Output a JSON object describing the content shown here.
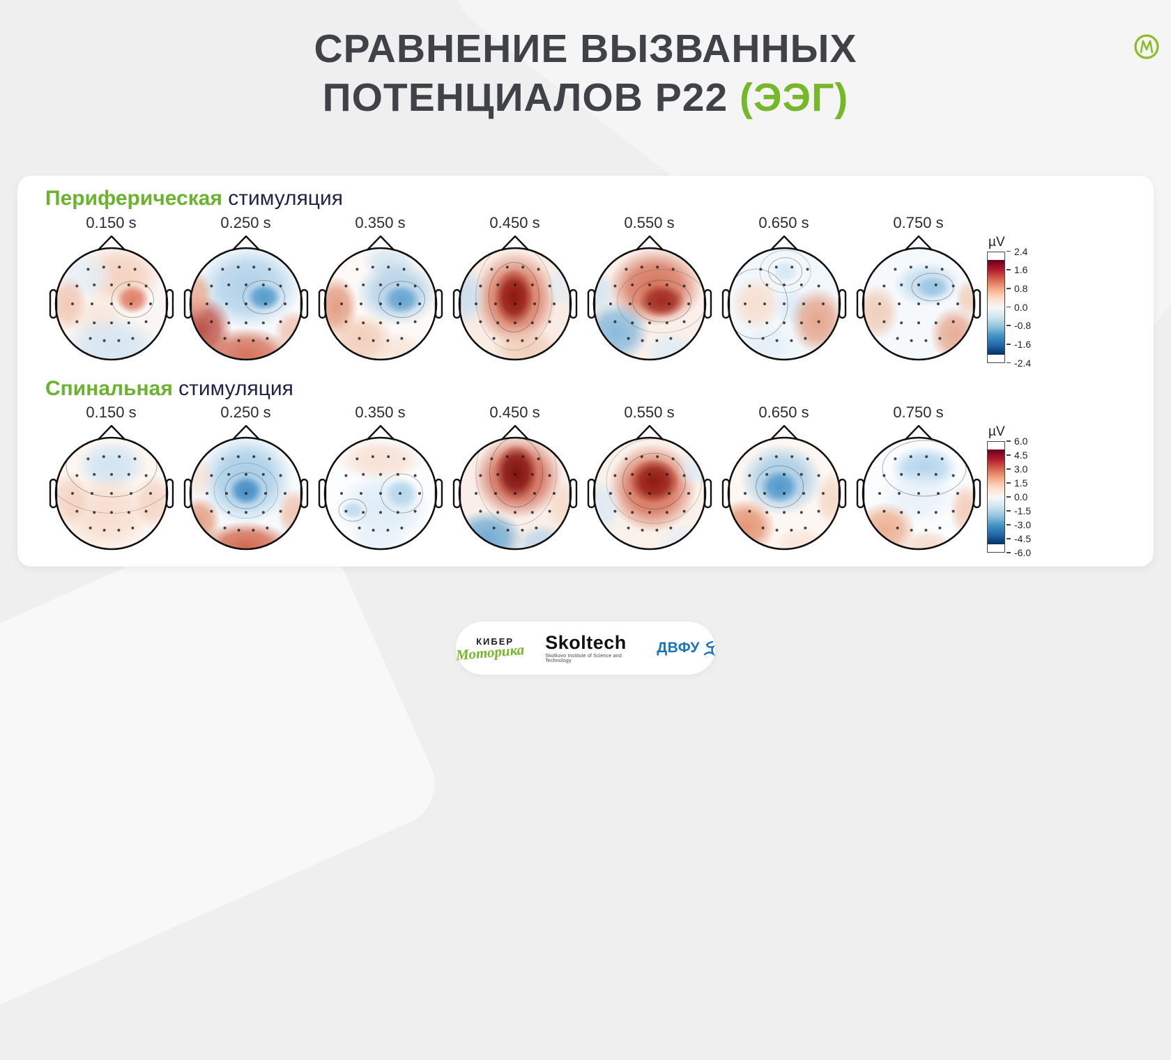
{
  "page_background": "#efefef",
  "brand_logo": {
    "letter": "М",
    "color": "#8cbd22"
  },
  "title": {
    "line1": "СРАВНЕНИЕ ВЫЗВАННЫХ",
    "line2_dark": "ПОТЕНЦИАЛОВ P22 ",
    "line2_green": "(ЭЭГ)",
    "dark_color": "#3f4246",
    "green_color": "#76b82a"
  },
  "footer": {
    "kiber_top": "КИБЕР",
    "kiber_bottom": "Моторика",
    "skoltech": "Skoltech",
    "skoltech_subtitle": "Skolkovo Institute of Science and Technology",
    "dvfu": "ДВФУ"
  },
  "chart_data": {
    "type": "heatmap",
    "title": "Сравнение вызванных потенциалов P22 (ЭЭГ)",
    "description": "Two rows of EEG scalp topographic maps (evoked potential P22) at seven latencies, for peripheral vs spinal stimulation, diverging red-blue colormap in µV.",
    "colormap_gradient_top_to_bottom": [
      "#67001f",
      "#b2182b",
      "#d6604d",
      "#f4a582",
      "#fddbc7",
      "#f7f7f7",
      "#d1e5f0",
      "#92c5de",
      "#4393c3",
      "#2166ac",
      "#053061"
    ],
    "electrodes": [
      [
        -0.42,
        -0.62
      ],
      [
        -0.14,
        -0.66
      ],
      [
        0.14,
        -0.66
      ],
      [
        0.42,
        -0.62
      ],
      [
        -0.62,
        -0.32
      ],
      [
        -0.31,
        -0.34
      ],
      [
        0,
        -0.34
      ],
      [
        0.31,
        -0.34
      ],
      [
        0.62,
        -0.32
      ],
      [
        -0.7,
        0.0
      ],
      [
        -0.35,
        0.0
      ],
      [
        0,
        0.0
      ],
      [
        0.35,
        0.0
      ],
      [
        0.7,
        0.0
      ],
      [
        -0.62,
        0.32
      ],
      [
        -0.31,
        0.34
      ],
      [
        0,
        0.34
      ],
      [
        0.31,
        0.34
      ],
      [
        0.62,
        0.32
      ],
      [
        -0.38,
        0.62
      ],
      [
        -0.13,
        0.66
      ],
      [
        0.13,
        0.66
      ],
      [
        0.38,
        0.62
      ]
    ],
    "groups": [
      {
        "title_highlight": "Периферическая",
        "title_rest": " стимуляция",
        "colorbar": {
          "unit": "µV",
          "vmax": 2.4,
          "vmin": -2.4,
          "ticks": [
            "2.4",
            "1.6",
            "0.8",
            "0.0",
            "-0.8",
            "-1.6",
            "-2.4"
          ]
        },
        "maps": [
          {
            "time": "0.150 s",
            "base": "#fbf6f3",
            "blobs": [
              {
                "x": 0.15,
                "y": -0.5,
                "rx": 0.75,
                "ry": 0.55,
                "c": "#f2c9b2",
                "a": 0.8
              },
              {
                "x": -0.45,
                "y": -0.5,
                "rx": 0.5,
                "ry": 0.45,
                "c": "#e4eef7",
                "a": 0.9
              },
              {
                "x": 0.38,
                "y": -0.08,
                "rx": 0.3,
                "ry": 0.26,
                "c": "#d96b4f",
                "a": 0.85,
                "ct": 1
              },
              {
                "x": -0.78,
                "y": 0.0,
                "rx": 0.35,
                "ry": 0.5,
                "c": "#eeb69c",
                "a": 0.7
              },
              {
                "x": -0.25,
                "y": 0.25,
                "rx": 0.5,
                "ry": 0.4,
                "c": "#f4ddcd",
                "a": 0.6
              },
              {
                "x": 0.0,
                "y": 0.8,
                "rx": 0.9,
                "ry": 0.6,
                "c": "#cfe3f2",
                "a": 0.85
              }
            ]
          },
          {
            "time": "0.250 s",
            "base": "#f7fafd",
            "blobs": [
              {
                "x": 0.05,
                "y": -0.3,
                "rx": 0.95,
                "ry": 0.75,
                "c": "#a8cce6",
                "a": 0.9
              },
              {
                "x": 0.32,
                "y": -0.12,
                "rx": 0.3,
                "ry": 0.24,
                "c": "#4a94c9",
                "a": 0.9,
                "ct": 1
              },
              {
                "x": -0.8,
                "y": 0.45,
                "rx": 0.55,
                "ry": 0.6,
                "c": "#b43527",
                "a": 0.85
              },
              {
                "x": 0.0,
                "y": 0.92,
                "rx": 0.85,
                "ry": 0.5,
                "c": "#cf5a3e",
                "a": 0.85
              },
              {
                "x": -0.9,
                "y": -0.15,
                "rx": 0.3,
                "ry": 0.45,
                "c": "#e8a183",
                "a": 0.8
              },
              {
                "x": 0.85,
                "y": 0.5,
                "rx": 0.35,
                "ry": 0.4,
                "c": "#eeb096",
                "a": 0.7
              }
            ]
          },
          {
            "time": "0.350 s",
            "base": "#fdf9f6",
            "blobs": [
              {
                "x": 0.15,
                "y": -0.75,
                "rx": 0.5,
                "ry": 0.3,
                "c": "#cfe2f1",
                "a": 0.8
              },
              {
                "x": 0.3,
                "y": -0.2,
                "rx": 0.75,
                "ry": 0.6,
                "c": "#a8cce6",
                "a": 0.9
              },
              {
                "x": 0.38,
                "y": -0.08,
                "rx": 0.33,
                "ry": 0.26,
                "c": "#5d9fd0",
                "a": 0.9,
                "ct": 1
              },
              {
                "x": -0.8,
                "y": 0.05,
                "rx": 0.4,
                "ry": 0.55,
                "c": "#dd8868",
                "a": 0.8
              },
              {
                "x": -0.35,
                "y": 0.65,
                "rx": 0.6,
                "ry": 0.5,
                "c": "#f0c3ab",
                "a": 0.8
              },
              {
                "x": 0.3,
                "y": 0.85,
                "rx": 0.5,
                "ry": 0.35,
                "c": "#f6ded0",
                "a": 0.7
              }
            ]
          },
          {
            "time": "0.450 s",
            "base": "#f9ece4",
            "blobs": [
              {
                "x": 0.0,
                "y": -0.1,
                "rx": 0.75,
                "ry": 0.85,
                "c": "#d0644a",
                "a": 0.9
              },
              {
                "x": -0.02,
                "y": -0.12,
                "rx": 0.36,
                "ry": 0.5,
                "c": "#8c130e",
                "a": 0.95,
                "ct": 1
              },
              {
                "x": -0.88,
                "y": -0.15,
                "rx": 0.35,
                "ry": 0.55,
                "c": "#c5dcef",
                "a": 0.85
              },
              {
                "x": 0.85,
                "y": -0.3,
                "rx": 0.3,
                "ry": 0.4,
                "c": "#dcebf6",
                "a": 0.7
              },
              {
                "x": 0.2,
                "y": 0.8,
                "rx": 0.6,
                "ry": 0.4,
                "c": "#f0c3ab",
                "a": 0.7
              }
            ]
          },
          {
            "time": "0.550 s",
            "base": "#faf0e9",
            "blobs": [
              {
                "x": 0.1,
                "y": -0.3,
                "rx": 0.85,
                "ry": 0.7,
                "c": "#d0644a",
                "a": 0.9
              },
              {
                "x": 0.22,
                "y": -0.05,
                "rx": 0.42,
                "ry": 0.3,
                "c": "#9c231b",
                "a": 0.92,
                "ct": 1
              },
              {
                "x": -0.6,
                "y": 0.5,
                "rx": 0.6,
                "ry": 0.55,
                "c": "#7db4da",
                "a": 0.9
              },
              {
                "x": -0.9,
                "y": -0.2,
                "rx": 0.3,
                "ry": 0.4,
                "c": "#cfe3f2",
                "a": 0.8
              },
              {
                "x": 0.4,
                "y": 0.85,
                "rx": 0.5,
                "ry": 0.35,
                "c": "#dcebf6",
                "a": 0.8
              }
            ]
          },
          {
            "time": "0.650 s",
            "base": "#f2f7fc",
            "blobs": [
              {
                "x": 0.02,
                "y": -0.58,
                "rx": 0.24,
                "ry": 0.2,
                "c": "#d4e6f4",
                "a": 0.95,
                "ct": 1
              },
              {
                "x": -0.5,
                "y": 0.0,
                "rx": 0.45,
                "ry": 0.5,
                "c": "#f6ddca",
                "a": 0.9,
                "ct": 1
              },
              {
                "x": 0.15,
                "y": 0.05,
                "rx": 0.35,
                "ry": 0.35,
                "c": "#d9e9f6",
                "a": 0.8
              },
              {
                "x": 0.6,
                "y": 0.3,
                "rx": 0.5,
                "ry": 0.6,
                "c": "#e29272",
                "a": 0.8
              },
              {
                "x": -0.3,
                "y": 0.75,
                "rx": 0.5,
                "ry": 0.35,
                "c": "#e2eef8",
                "a": 0.8
              }
            ]
          },
          {
            "time": "0.750 s",
            "base": "#f5f9fc",
            "blobs": [
              {
                "x": 0.15,
                "y": -0.35,
                "rx": 0.6,
                "ry": 0.4,
                "c": "#bdd8ec",
                "a": 0.9
              },
              {
                "x": 0.25,
                "y": -0.3,
                "rx": 0.3,
                "ry": 0.2,
                "c": "#93c1e1",
                "a": 0.85,
                "ct": 1
              },
              {
                "x": -0.75,
                "y": 0.15,
                "rx": 0.4,
                "ry": 0.5,
                "c": "#f0c3ab",
                "a": 0.8
              },
              {
                "x": 0.9,
                "y": -0.1,
                "rx": 0.25,
                "ry": 0.35,
                "c": "#f0c3ab",
                "a": 0.7
              },
              {
                "x": 0.65,
                "y": 0.55,
                "rx": 0.45,
                "ry": 0.5,
                "c": "#e29272",
                "a": 0.75
              }
            ]
          }
        ]
      },
      {
        "title_highlight": "Спинальная",
        "title_rest": " стимуляция",
        "colorbar": {
          "unit": "µV",
          "vmax": 6.0,
          "vmin": -6.0,
          "ticks": [
            "6.0",
            "4.5",
            "3.0",
            "1.5",
            "0.0",
            "-1.5",
            "-3.0",
            "-4.5",
            "-6.0"
          ]
        },
        "maps": [
          {
            "time": "0.150 s",
            "base": "#fdf6f1",
            "blobs": [
              {
                "x": 0.0,
                "y": -0.5,
                "rx": 0.65,
                "ry": 0.45,
                "c": "#cfe3f2",
                "a": 0.95,
                "ct": 1
              },
              {
                "x": -0.1,
                "y": 0.35,
                "rx": 0.85,
                "ry": 0.7,
                "c": "#f5d8c6",
                "a": 0.8
              },
              {
                "x": -0.75,
                "y": 0.1,
                "rx": 0.35,
                "ry": 0.5,
                "c": "#f0c9b4",
                "a": 0.7
              },
              {
                "x": 0.75,
                "y": 0.15,
                "rx": 0.35,
                "ry": 0.5,
                "c": "#f0c9b4",
                "a": 0.7
              }
            ]
          },
          {
            "time": "0.250 s",
            "base": "#f7fafd",
            "blobs": [
              {
                "x": 0.0,
                "y": -0.25,
                "rx": 0.85,
                "ry": 0.8,
                "c": "#9ac6e3",
                "a": 0.9
              },
              {
                "x": 0.0,
                "y": -0.05,
                "rx": 0.3,
                "ry": 0.26,
                "c": "#3c87c3",
                "a": 0.92,
                "ct": 1
              },
              {
                "x": 0.0,
                "y": 0.95,
                "rx": 0.85,
                "ry": 0.45,
                "c": "#cf5a3e",
                "a": 0.9
              },
              {
                "x": -0.85,
                "y": 0.5,
                "rx": 0.4,
                "ry": 0.45,
                "c": "#e08a66",
                "a": 0.8
              },
              {
                "x": 0.85,
                "y": 0.35,
                "rx": 0.3,
                "ry": 0.45,
                "c": "#eeb096",
                "a": 0.7
              },
              {
                "x": -0.85,
                "y": -0.3,
                "rx": 0.3,
                "ry": 0.4,
                "c": "#f6ded0",
                "a": 0.7
              }
            ]
          },
          {
            "time": "0.350 s",
            "base": "#fcfdfe",
            "blobs": [
              {
                "x": 0.0,
                "y": -0.6,
                "rx": 0.8,
                "ry": 0.4,
                "c": "#f6ded0",
                "a": 0.9
              },
              {
                "x": 0.05,
                "y": 0.25,
                "rx": 0.85,
                "ry": 0.65,
                "c": "#dcebf6",
                "a": 0.95
              },
              {
                "x": 0.38,
                "y": 0.0,
                "rx": 0.3,
                "ry": 0.28,
                "c": "#b0d2ea",
                "a": 0.9,
                "ct": 1
              },
              {
                "x": -0.5,
                "y": 0.3,
                "rx": 0.2,
                "ry": 0.16,
                "c": "#bcd8ed",
                "a": 0.9,
                "ct": 1
              },
              {
                "x": -0.05,
                "y": 0.85,
                "rx": 0.6,
                "ry": 0.35,
                "c": "#e6f0f9",
                "a": 0.8
              }
            ]
          },
          {
            "time": "0.450 s",
            "base": "#f9efe8",
            "blobs": [
              {
                "x": 0.05,
                "y": -0.3,
                "rx": 0.8,
                "ry": 0.75,
                "c": "#c94e39",
                "a": 0.9
              },
              {
                "x": 0.02,
                "y": -0.38,
                "rx": 0.38,
                "ry": 0.5,
                "c": "#7c0f0c",
                "a": 0.95,
                "ct": 1
              },
              {
                "x": -0.5,
                "y": 0.8,
                "rx": 0.65,
                "ry": 0.5,
                "c": "#64a5d2",
                "a": 0.9
              },
              {
                "x": 0.5,
                "y": 0.9,
                "rx": 0.5,
                "ry": 0.35,
                "c": "#b3d3ea",
                "a": 0.8
              },
              {
                "x": 0.85,
                "y": 0.2,
                "rx": 0.3,
                "ry": 0.45,
                "c": "#f4d4c0",
                "a": 0.7
              }
            ]
          },
          {
            "time": "0.550 s",
            "base": "#faf1ea",
            "blobs": [
              {
                "x": 0.05,
                "y": -0.1,
                "rx": 0.8,
                "ry": 0.8,
                "c": "#cf5a3e",
                "a": 0.88
              },
              {
                "x": 0.08,
                "y": -0.22,
                "rx": 0.45,
                "ry": 0.4,
                "c": "#8c130e",
                "a": 0.93,
                "ct": 1
              },
              {
                "x": -0.85,
                "y": 0.25,
                "rx": 0.35,
                "ry": 0.5,
                "c": "#d9e9f6",
                "a": 0.85
              },
              {
                "x": 0.8,
                "y": -0.45,
                "rx": 0.3,
                "ry": 0.35,
                "c": "#dcebf6",
                "a": 0.8
              },
              {
                "x": 0.6,
                "y": 0.85,
                "rx": 0.45,
                "ry": 0.3,
                "c": "#e2eef8",
                "a": 0.7
              }
            ]
          },
          {
            "time": "0.650 s",
            "base": "#fdf7f3",
            "blobs": [
              {
                "x": -0.05,
                "y": -0.25,
                "rx": 0.75,
                "ry": 0.65,
                "c": "#9ac6e3",
                "a": 0.9
              },
              {
                "x": -0.08,
                "y": -0.12,
                "rx": 0.34,
                "ry": 0.3,
                "c": "#4a94c9",
                "a": 0.9,
                "ct": 1
              },
              {
                "x": -0.7,
                "y": 0.6,
                "rx": 0.55,
                "ry": 0.5,
                "c": "#e0845f",
                "a": 0.85
              },
              {
                "x": 0.85,
                "y": 0.1,
                "rx": 0.3,
                "ry": 0.5,
                "c": "#f4d4c0",
                "a": 0.8
              },
              {
                "x": 0.3,
                "y": 0.9,
                "rx": 0.5,
                "ry": 0.3,
                "c": "#f6ded0",
                "a": 0.7
              }
            ]
          },
          {
            "time": "0.750 s",
            "base": "#fafcfe",
            "blobs": [
              {
                "x": 0.1,
                "y": -0.45,
                "rx": 0.6,
                "ry": 0.4,
                "c": "#abd0ea",
                "a": 0.9,
                "ct": 1
              },
              {
                "x": 0.0,
                "y": 0.05,
                "rx": 0.7,
                "ry": 0.5,
                "c": "#e6f0f9",
                "a": 0.85
              },
              {
                "x": -0.6,
                "y": 0.65,
                "rx": 0.55,
                "ry": 0.5,
                "c": "#e89e78",
                "a": 0.8
              },
              {
                "x": 0.85,
                "y": 0.3,
                "rx": 0.3,
                "ry": 0.5,
                "c": "#f0c3ab",
                "a": 0.8
              },
              {
                "x": 0.15,
                "y": 0.95,
                "rx": 0.5,
                "ry": 0.3,
                "c": "#f2cdb8",
                "a": 0.7
              }
            ]
          }
        ]
      }
    ]
  }
}
